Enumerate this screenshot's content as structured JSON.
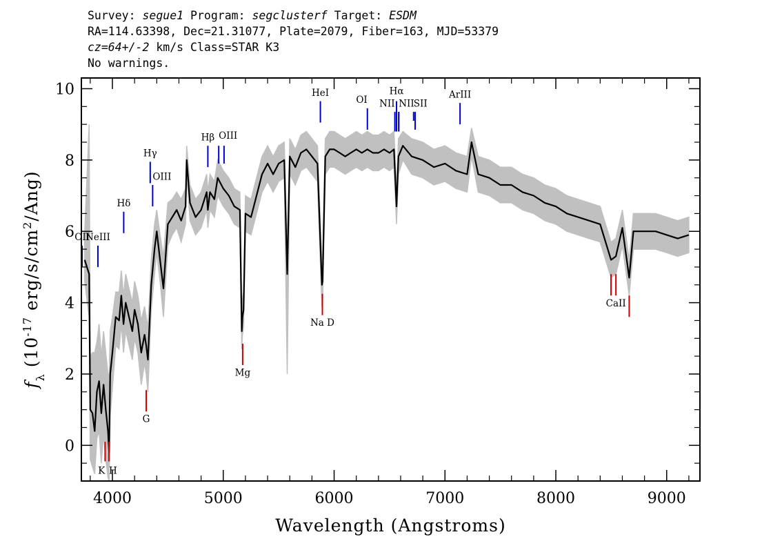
{
  "header": {
    "survey_label": "Survey:",
    "survey": "segue1",
    "program_label": "Program:",
    "program": "segclusterf",
    "target_label": "Target:",
    "target": "ESDM",
    "line2": "RA=114.63398, Dec=21.31077, Plate=2079, Fiber=163, MJD=53379",
    "redshift": "cz=64+/-2",
    "redshift_rest": " km/s Class=STAR K3",
    "warnings": "No warnings."
  },
  "chart_data": {
    "type": "line",
    "xlabel": "Wavelength (Angstroms)",
    "ylabel_prefix": "f",
    "ylabel_sub": "λ",
    "ylabel_rest_a": " (10",
    "ylabel_exp": "-17",
    "ylabel_rest_b": " erg/s/cm",
    "ylabel_exp2": "2",
    "ylabel_rest_c": "/Ang)",
    "xlim": [
      3720,
      9300
    ],
    "ylim": [
      -1,
      10.3
    ],
    "xticks": [
      4000,
      5000,
      6000,
      7000,
      8000,
      9000
    ],
    "xtick_labels": [
      "4000",
      "5000",
      "6000",
      "7000",
      "8000",
      "9000"
    ],
    "yticks": [
      0,
      2,
      4,
      6,
      8,
      10
    ],
    "ytick_labels": [
      "0",
      "2",
      "4",
      "6",
      "8",
      "10"
    ],
    "series": [
      {
        "color": "#000000",
        "x": [
          3750,
          3790,
          3800,
          3820,
          3840,
          3860,
          3880,
          3900,
          3920,
          3940,
          3960,
          3970,
          3980,
          4000,
          4030,
          4060,
          4080,
          4100,
          4120,
          4150,
          4180,
          4200,
          4230,
          4260,
          4290,
          4305,
          4320,
          4350,
          4380,
          4400,
          4430,
          4460,
          4500,
          4540,
          4580,
          4620,
          4660,
          4670,
          4700,
          4750,
          4800,
          4850,
          4861,
          4880,
          4920,
          4950,
          5000,
          5050,
          5100,
          5150,
          5167,
          5173,
          5183,
          5200,
          5250,
          5300,
          5350,
          5400,
          5450,
          5500,
          5550,
          5577,
          5600,
          5650,
          5700,
          5750,
          5800,
          5850,
          5890,
          5896,
          5920,
          5960,
          6000,
          6050,
          6100,
          6150,
          6200,
          6250,
          6300,
          6350,
          6400,
          6450,
          6500,
          6540,
          6563,
          6580,
          6620,
          6700,
          6800,
          6900,
          7000,
          7100,
          7200,
          7240,
          7300,
          7400,
          7500,
          7600,
          7700,
          7800,
          7900,
          8000,
          8100,
          8200,
          8300,
          8400,
          8498,
          8542,
          8600,
          8662,
          8700,
          8800,
          8900,
          9000,
          9100,
          9200
        ],
        "y": [
          5.2,
          4.8,
          1.0,
          0.9,
          0.4,
          1.5,
          1.8,
          0.9,
          1.7,
          1.0,
          0.4,
          -0.2,
          2.0,
          2.6,
          3.6,
          3.5,
          4.2,
          3.4,
          4.0,
          3.6,
          3.2,
          3.8,
          3.4,
          2.6,
          3.1,
          2.8,
          2.4,
          4.5,
          5.5,
          6.0,
          5.2,
          4.4,
          6.2,
          6.4,
          6.6,
          6.3,
          6.7,
          8.0,
          6.8,
          6.4,
          6.6,
          7.1,
          6.6,
          7.1,
          6.9,
          7.5,
          7.2,
          7.0,
          6.7,
          6.6,
          3.2,
          3.6,
          3.8,
          6.5,
          6.4,
          7.0,
          7.6,
          7.9,
          7.6,
          7.9,
          8.0,
          4.8,
          8.1,
          7.8,
          8.2,
          8.3,
          8.1,
          7.9,
          4.5,
          4.6,
          8.1,
          8.3,
          8.3,
          8.2,
          8.1,
          8.2,
          8.3,
          8.2,
          8.3,
          8.2,
          8.2,
          8.3,
          8.2,
          8.3,
          6.7,
          8.1,
          8.4,
          8.1,
          8.0,
          7.8,
          7.9,
          7.7,
          7.6,
          8.5,
          7.6,
          7.5,
          7.3,
          7.3,
          7.1,
          7.0,
          6.8,
          6.7,
          6.5,
          6.4,
          6.3,
          6.2,
          5.2,
          5.3,
          6.1,
          4.7,
          6.0,
          6.0,
          6.0,
          5.9,
          5.8,
          5.9
        ]
      }
    ],
    "error_band": {
      "color": "#c0c0c0",
      "upper": [
        6.0,
        9.0,
        2.5,
        2.6,
        2.6,
        2.9,
        3.4,
        2.5,
        3.2,
        2.6,
        2.0,
        1.8,
        3.2,
        3.6,
        4.3,
        4.3,
        4.9,
        4.2,
        4.8,
        4.4,
        4.0,
        4.6,
        4.2,
        3.5,
        3.9,
        3.6,
        3.3,
        5.2,
        6.2,
        6.6,
        5.9,
        5.3,
        6.8,
        6.9,
        7.1,
        6.9,
        7.2,
        8.4,
        7.3,
        6.9,
        7.1,
        7.6,
        7.1,
        7.6,
        7.4,
        8.0,
        7.7,
        7.5,
        7.2,
        7.1,
        3.7,
        4.1,
        4.3,
        7.0,
        6.9,
        7.5,
        8.1,
        8.4,
        8.1,
        8.4,
        8.5,
        5.5,
        8.6,
        8.3,
        8.7,
        8.8,
        8.6,
        8.4,
        5.1,
        5.2,
        8.6,
        8.8,
        8.8,
        8.7,
        8.6,
        8.7,
        8.8,
        8.7,
        8.8,
        8.7,
        8.7,
        8.8,
        8.7,
        8.8,
        7.2,
        8.6,
        8.8,
        8.6,
        8.5,
        8.3,
        8.4,
        8.2,
        8.1,
        8.9,
        8.1,
        8.0,
        7.8,
        7.8,
        7.6,
        7.5,
        7.3,
        7.2,
        7.0,
        6.9,
        6.8,
        6.7,
        5.7,
        5.8,
        6.6,
        5.2,
        6.5,
        6.5,
        6.5,
        6.4,
        6.3,
        6.4
      ],
      "lower": [
        4.6,
        3.6,
        -0.4,
        -0.6,
        -0.8,
        0.2,
        0.4,
        -0.5,
        0.3,
        -0.4,
        -0.9,
        -1.0,
        0.8,
        1.6,
        2.8,
        2.7,
        3.4,
        2.6,
        3.2,
        2.8,
        2.4,
        3.0,
        2.6,
        1.7,
        2.3,
        2.0,
        1.5,
        3.8,
        4.8,
        5.4,
        4.6,
        3.6,
        5.6,
        5.9,
        6.1,
        5.7,
        6.2,
        7.6,
        6.3,
        5.9,
        6.1,
        6.6,
        6.1,
        6.6,
        6.4,
        7.0,
        6.7,
        6.5,
        6.2,
        6.1,
        2.7,
        3.1,
        3.3,
        6.0,
        5.9,
        6.5,
        7.1,
        7.4,
        7.1,
        7.4,
        7.5,
        2.0,
        7.6,
        7.3,
        7.7,
        7.8,
        7.6,
        7.4,
        3.9,
        4.0,
        7.6,
        7.8,
        7.8,
        7.7,
        7.6,
        7.7,
        7.8,
        7.7,
        7.8,
        7.7,
        7.7,
        7.8,
        7.7,
        7.8,
        6.2,
        7.6,
        8.0,
        7.6,
        7.5,
        7.3,
        7.4,
        7.2,
        7.1,
        8.1,
        7.1,
        7.0,
        6.8,
        6.8,
        6.6,
        6.5,
        6.3,
        6.2,
        6.0,
        5.9,
        5.8,
        5.7,
        4.7,
        4.8,
        5.6,
        4.2,
        5.5,
        5.5,
        5.5,
        5.4,
        5.3,
        5.4
      ]
    },
    "emission_lines": [
      {
        "label": "OII",
        "x": 3727,
        "y_bottom": 5.0,
        "y_top": 5.6,
        "label_y": 5.75,
        "color": "#0000cc",
        "anchor": "middle"
      },
      {
        "label": "NeIII",
        "x": 3869,
        "y_bottom": 5.0,
        "y_top": 5.6,
        "label_y": 5.75,
        "color": "#0000cc",
        "anchor": "middle"
      },
      {
        "label": "Hδ",
        "x": 4102,
        "y_bottom": 5.95,
        "y_top": 6.55,
        "label_y": 6.7,
        "color": "#0000cc",
        "anchor": "middle"
      },
      {
        "label": "Hγ",
        "x": 4341,
        "y_bottom": 7.35,
        "y_top": 7.95,
        "label_y": 8.1,
        "color": "#0000cc",
        "anchor": "middle"
      },
      {
        "label": "OIII",
        "x": 4363,
        "y_bottom": 6.7,
        "y_top": 7.3,
        "label_y": 7.45,
        "color": "#0000cc",
        "anchor": "start"
      },
      {
        "label": "Hβ",
        "x": 4861,
        "y_bottom": 7.8,
        "y_top": 8.4,
        "label_y": 8.55,
        "color": "#0000cc",
        "anchor": "middle"
      },
      {
        "label": "OIII",
        "x": 4959,
        "y_bottom": 7.9,
        "y_top": 8.4,
        "label_y": 8.6,
        "color": "#0000cc",
        "anchor": "start"
      },
      {
        "label": "",
        "x": 5007,
        "y_bottom": 7.9,
        "y_top": 8.4,
        "label_y": 8.6,
        "color": "#0000cc",
        "anchor": "start"
      },
      {
        "label": "HeI",
        "x": 5876,
        "y_bottom": 9.05,
        "y_top": 9.65,
        "label_y": 9.8,
        "color": "#0000cc",
        "anchor": "middle"
      },
      {
        "label": "OI",
        "x": 6300,
        "y_bottom": 8.85,
        "y_top": 9.45,
        "label_y": 9.6,
        "color": "#0000cc",
        "anchor": "end"
      },
      {
        "label": "NII",
        "x": 6548,
        "y_bottom": 8.8,
        "y_top": 9.35,
        "label_y": 9.5,
        "color": "#0000cc",
        "anchor": "end"
      },
      {
        "label": "Hα",
        "x": 6563,
        "y_bottom": 8.8,
        "y_top": 9.65,
        "label_y": 9.85,
        "color": "#0000cc",
        "anchor": "middle"
      },
      {
        "label": "",
        "x": 6583,
        "y_bottom": 8.8,
        "y_top": 9.35,
        "label_y": 9.5,
        "color": "#0000cc",
        "anchor": "start"
      },
      {
        "label": "NII",
        "x": 6583,
        "y_bottom": 8.8,
        "y_top": 9.35,
        "label_y": 9.5,
        "color": "#0000cc",
        "anchor": "start"
      },
      {
        "label": "SII",
        "x": 6717,
        "y_bottom": 9.1,
        "y_top": 9.35,
        "label_y": 9.5,
        "color": "#0000cc",
        "anchor": "start"
      },
      {
        "label": "",
        "x": 6731,
        "y_bottom": 8.85,
        "y_top": 9.35,
        "label_y": 9.5,
        "color": "#0000cc",
        "anchor": "start"
      },
      {
        "label": "ArIII",
        "x": 7136,
        "y_bottom": 9.0,
        "y_top": 9.6,
        "label_y": 9.75,
        "color": "#0000cc",
        "anchor": "middle"
      }
    ],
    "absorption_lines": [
      {
        "label": "K",
        "x": 3934,
        "y_bottom": -0.45,
        "y_top": 0.1,
        "label_y": -0.8,
        "color": "#cc0000",
        "anchor": "end"
      },
      {
        "label": "H",
        "x": 3969,
        "y_bottom": -0.45,
        "y_top": 0.1,
        "label_y": -0.8,
        "color": "#cc0000",
        "anchor": "start"
      },
      {
        "label": "G",
        "x": 4305,
        "y_bottom": 0.95,
        "y_top": 1.55,
        "label_y": 0.65,
        "color": "#cc0000",
        "anchor": "middle"
      },
      {
        "label": "Mg",
        "x": 5175,
        "y_bottom": 2.25,
        "y_top": 2.85,
        "label_y": 1.95,
        "color": "#cc0000",
        "anchor": "middle"
      },
      {
        "label": "Na D",
        "x": 5894,
        "y_bottom": 3.65,
        "y_top": 4.25,
        "label_y": 3.35,
        "color": "#cc0000",
        "anchor": "middle"
      },
      {
        "label": "",
        "x": 8498,
        "y_bottom": 4.2,
        "y_top": 4.8,
        "label_y": 3.9,
        "color": "#cc0000",
        "anchor": "middle"
      },
      {
        "label": "CaII",
        "x": 8542,
        "y_bottom": 4.2,
        "y_top": 4.8,
        "label_y": 3.9,
        "color": "#cc0000",
        "anchor": "middle"
      },
      {
        "label": "",
        "x": 8662,
        "y_bottom": 3.6,
        "y_top": 4.2,
        "label_y": 3.9,
        "color": "#cc0000",
        "anchor": "middle"
      }
    ]
  }
}
